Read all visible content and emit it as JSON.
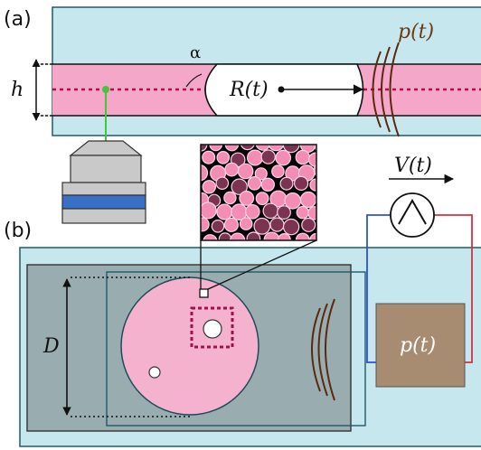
{
  "panel_a": {
    "label": "(a)",
    "h_label": "h",
    "alpha_label": "α",
    "R_label": "R(t)",
    "p_label": "p(t)"
  },
  "panel_b": {
    "label": "(b)",
    "D_label": "D",
    "V_label": "V(t)",
    "p_label": "p(t)"
  },
  "colors": {
    "channel": "#c7e7ef",
    "liquid": "#f4a7c8",
    "wave": "#5a2a10",
    "laser": "#44c63a",
    "blue_layer": "#3a6fc8",
    "cell_border": "#1f5a6a",
    "pressure_box": "#a88c72",
    "wire_blue": "#3050d8",
    "wire_red": "#d83040"
  }
}
